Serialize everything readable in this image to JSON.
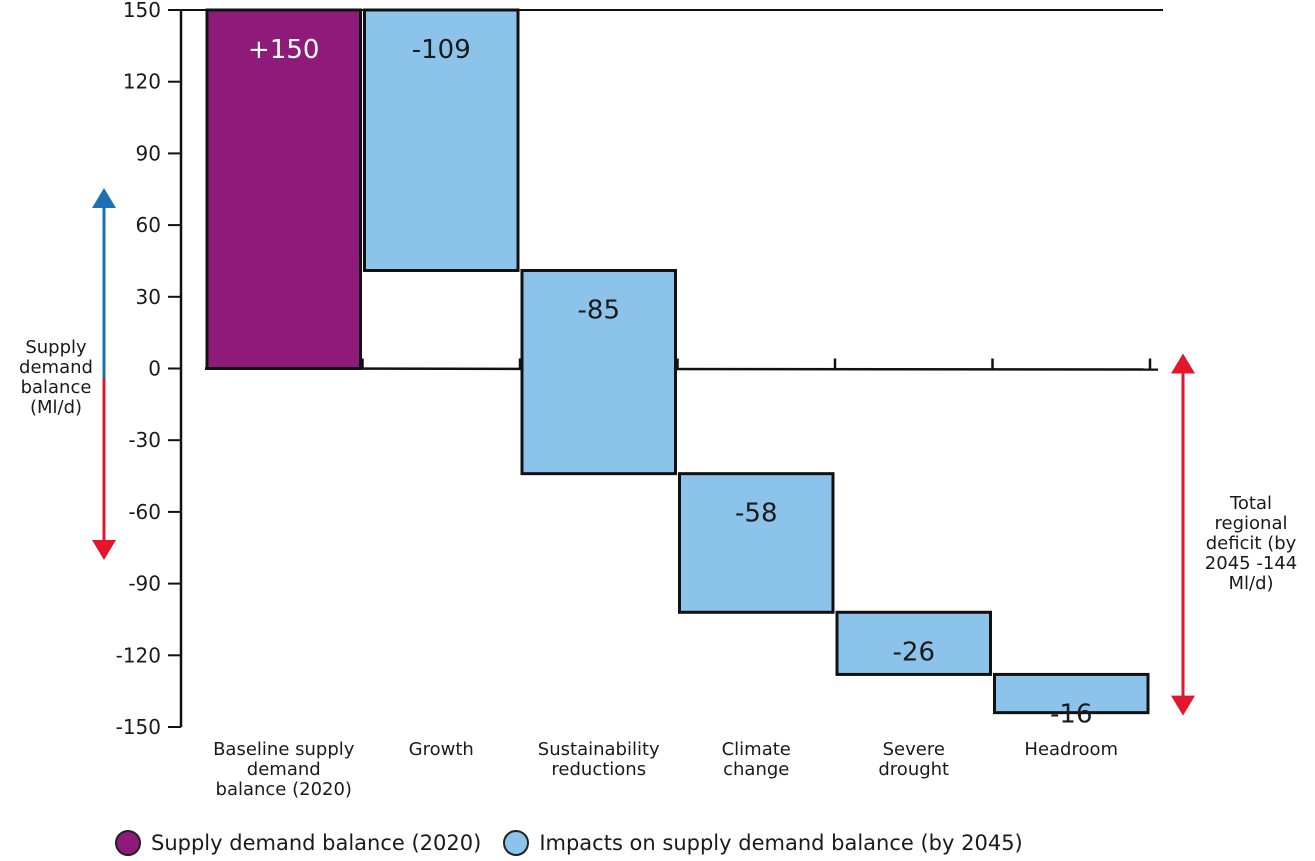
{
  "chart_data": {
    "type": "bar",
    "subtype": "waterfall",
    "categories": [
      "Baseline supply demand balance (2020)",
      "Growth",
      "Sustainability reductions",
      "Climate change",
      "Severe drought",
      "Headroom"
    ],
    "category_lines": [
      [
        "Baseline supply",
        "demand",
        "balance (2020)"
      ],
      [
        "Growth"
      ],
      [
        "Sustainability",
        "reductions"
      ],
      [
        "Climate",
        "change"
      ],
      [
        "Severe",
        "drought"
      ],
      [
        "Headroom"
      ]
    ],
    "values": [
      150,
      -109,
      -85,
      -58,
      -26,
      -16
    ],
    "data_labels": [
      "+150",
      "-109",
      "-85",
      "-58",
      "-26",
      "-16"
    ],
    "series_of_bar": [
      0,
      1,
      1,
      1,
      1,
      1
    ],
    "series": [
      {
        "name": "Supply demand balance (2020)",
        "color": "#8e1a7a"
      },
      {
        "name": "Impacts on supply demand balance (by 2045)",
        "color": "#8cc3ea"
      }
    ],
    "ylim": [
      -150,
      150
    ],
    "yticks": [
      150,
      120,
      90,
      60,
      30,
      0,
      -30,
      -60,
      -90,
      -120,
      -150
    ],
    "ytick_labels": [
      "150",
      "120",
      "90",
      "60",
      "30",
      "0",
      "-30",
      "-60",
      "-90",
      "-120",
      "-150"
    ],
    "ylabel": "Supply demand balance (Ml/d)",
    "ylabel_lines": [
      "Supply",
      "demand",
      "balance",
      "(Ml/d)"
    ],
    "right_annotation": "Total regional deficit (by 2045 -144 Ml/d)",
    "right_annotation_lines": [
      "Total",
      "regional",
      "deficit (by",
      "2045 -144",
      "Ml/d)"
    ],
    "arrow_up_color": "#1f6fb4",
    "arrow_down_color": "#e3162b",
    "legend_position": "bottom"
  }
}
